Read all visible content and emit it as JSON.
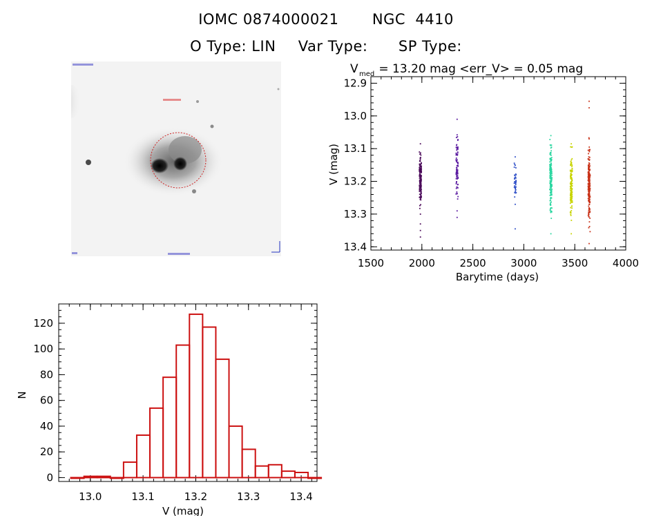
{
  "header": {
    "catalog_id": "IOMC 0874000021",
    "object_name": "NGC  4410",
    "o_type": "O Type: LIN",
    "var_type": "Var Type:",
    "sp_type": "SP Type:"
  },
  "image_panel": {
    "aperture_color": "#cc2222"
  },
  "chart_data": [
    {
      "type": "scatter",
      "title_parts": {
        "v": "V",
        "sub": "med",
        "rest": " = 13.20 mag <err_V> = 0.05 mag"
      },
      "xlabel": "Barytime (days)",
      "ylabel": "V (mag)",
      "xlim": [
        1500,
        4000
      ],
      "ylim": [
        13.41,
        12.88
      ],
      "y_inverted": true,
      "xticks": [
        1500,
        2000,
        2500,
        3000,
        3500,
        4000
      ],
      "yticks": [
        12.9,
        13.0,
        13.1,
        13.2,
        13.3,
        13.4
      ],
      "ytick_labels": [
        "12.9",
        "13.0",
        "13.1",
        "13.2",
        "13.3",
        "13.4"
      ],
      "series": [
        {
          "color": "#4b0a5a",
          "x": 1985,
          "v_min": 13.085,
          "v_max": 13.3,
          "v_center": 13.2,
          "n": 150,
          "outliers": [
            13.33,
            13.35,
            13.37
          ]
        },
        {
          "color": "#5a1aa0",
          "x": 2345,
          "v_min": 13.01,
          "v_max": 13.29,
          "v_center": 13.16,
          "n": 80,
          "outliers": [
            13.31
          ]
        },
        {
          "color": "#3050c8",
          "x": 2915,
          "v_min": 13.125,
          "v_max": 13.27,
          "v_center": 13.2,
          "n": 40,
          "outliers": [
            13.345
          ]
        },
        {
          "color": "#2ad6a0",
          "x": 3265,
          "v_min": 13.06,
          "v_max": 13.36,
          "v_center": 13.19,
          "n": 160,
          "outliers": []
        },
        {
          "color": "#c8d400",
          "x": 3465,
          "v_min": 13.085,
          "v_max": 13.36,
          "v_center": 13.21,
          "n": 140,
          "outliers": []
        },
        {
          "color": "#c83218",
          "x": 3640,
          "v_min": 13.07,
          "v_max": 13.39,
          "v_center": 13.2,
          "n": 180,
          "outliers": [
            12.955,
            12.975
          ]
        }
      ]
    },
    {
      "type": "bar",
      "subtype": "histogram",
      "xlabel": "V (mag)",
      "ylabel": "N",
      "xlim": [
        12.94,
        13.43
      ],
      "ylim": [
        -3,
        135
      ],
      "xticks": [
        13.0,
        13.1,
        13.2,
        13.3,
        13.4
      ],
      "xtick_labels": [
        "13.0",
        "13.1",
        "13.2",
        "13.3",
        "13.4"
      ],
      "yticks": [
        0,
        20,
        40,
        60,
        80,
        100,
        120
      ],
      "bin_width": 0.025,
      "bin_start": 12.963,
      "values": [
        0,
        1,
        1,
        0,
        12,
        33,
        54,
        78,
        103,
        127,
        117,
        92,
        40,
        22,
        9,
        10,
        5,
        4,
        0
      ],
      "color": "#cc1111"
    }
  ]
}
